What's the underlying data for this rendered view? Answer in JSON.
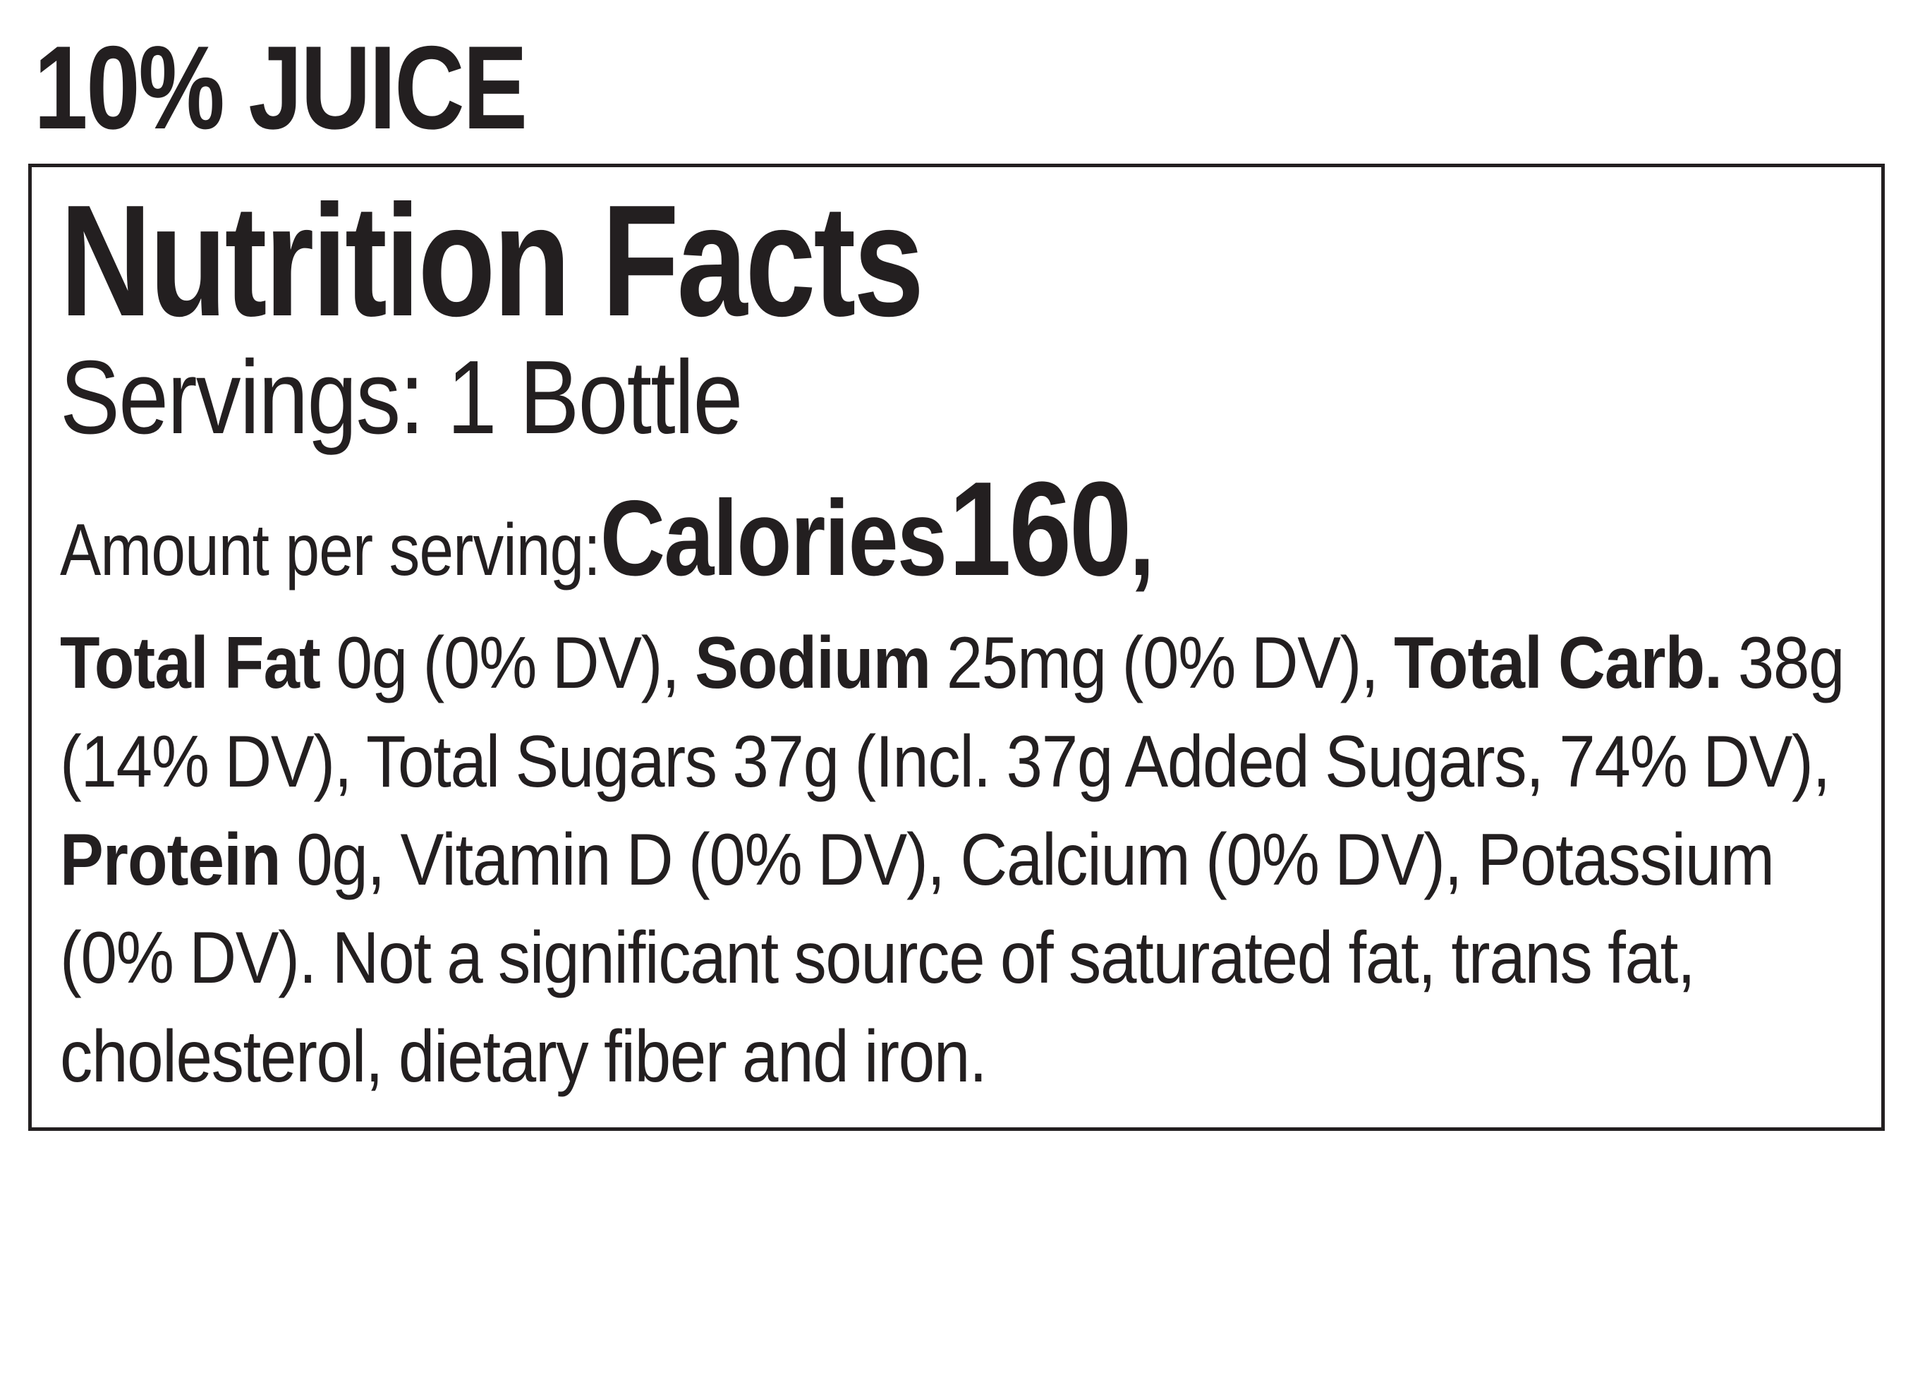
{
  "header": "10% JUICE",
  "title": "Nutrition Facts",
  "servings": "Servings: 1 Bottle",
  "amountPerServing": "Amount per serving:",
  "caloriesLabel": "Calories",
  "caloriesValue": "160",
  "caloriesComma": ",",
  "nutrients": {
    "totalFat": {
      "label": "Total Fat",
      "value": "0g (0% DV), "
    },
    "sodium": {
      "label": "Sodium",
      "value": "25mg (0% DV),"
    },
    "totalCarb": {
      "label": "Total Carb.",
      "value": "38g (14% DV), Total Sugars 37g (Incl. 37g Added Sugars, 74% DV), "
    },
    "protein": {
      "label": "Protein",
      "value": "0g, Vitamin D (0% DV), Calcium (0% DV), Potassium (0% DV). Not a significant source of saturated fat, trans fat, cholesterol, dietary fiber and iron."
    }
  }
}
